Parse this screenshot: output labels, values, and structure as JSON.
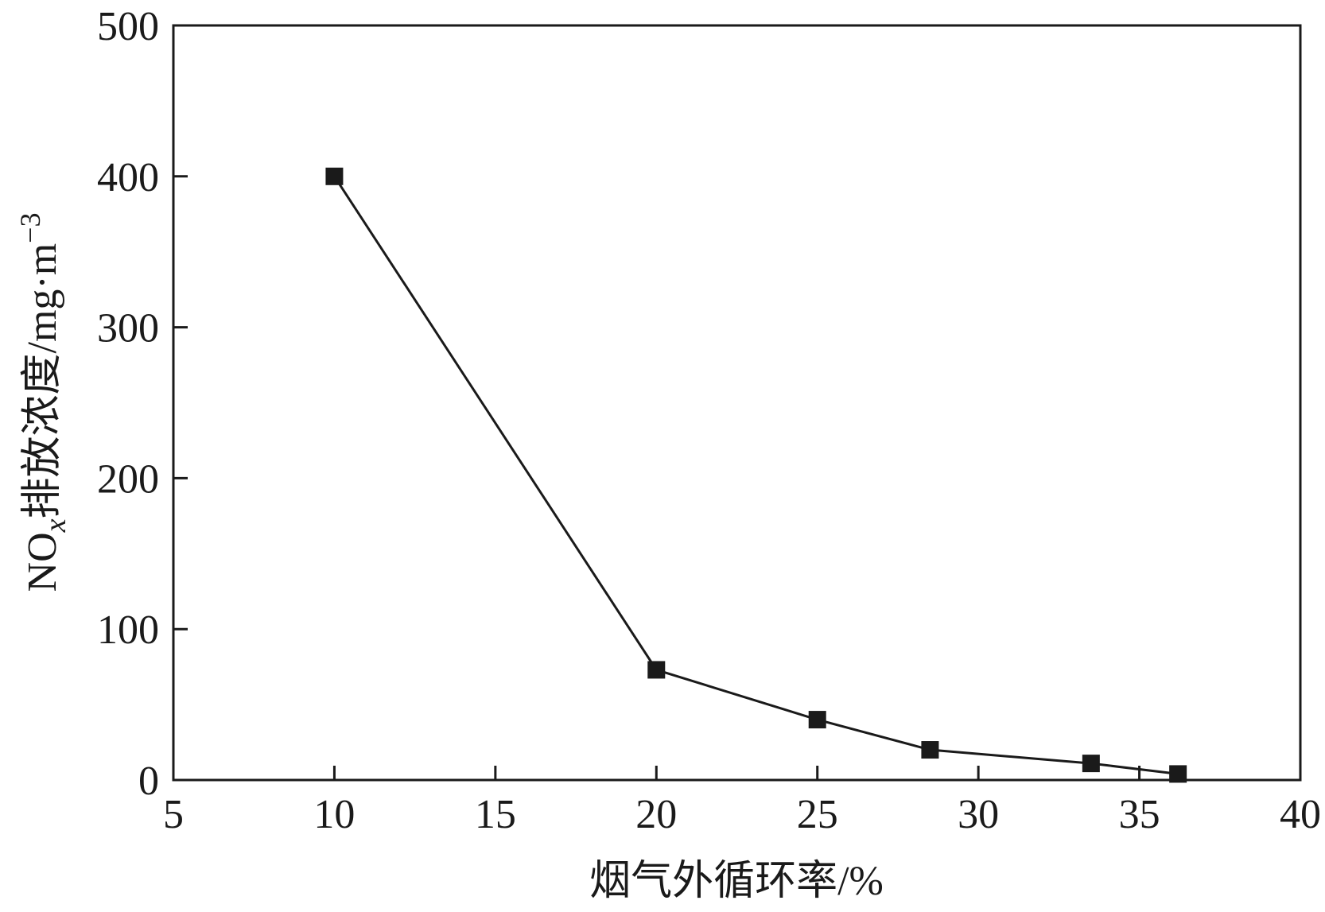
{
  "chart_data": {
    "type": "line",
    "title": "",
    "xlabel": "烟气外循环率/%",
    "ylabel_main": "NO",
    "ylabel_sub": "x",
    "ylabel_rest": "排放浓度/mg·m",
    "ylabel_sup": "−3",
    "xlim": [
      5,
      40
    ],
    "ylim": [
      0,
      500
    ],
    "xticks": [
      "5",
      "10",
      "15",
      "20",
      "25",
      "30",
      "35",
      "40"
    ],
    "yticks": [
      "0",
      "100",
      "200",
      "300",
      "400",
      "500"
    ],
    "grid": false,
    "legend": "none",
    "marker": "square",
    "series": [
      {
        "x": [
          10,
          20,
          25,
          28.5,
          33.5,
          36.2
        ],
        "y": [
          400,
          73,
          40,
          20,
          11,
          4
        ]
      }
    ]
  }
}
